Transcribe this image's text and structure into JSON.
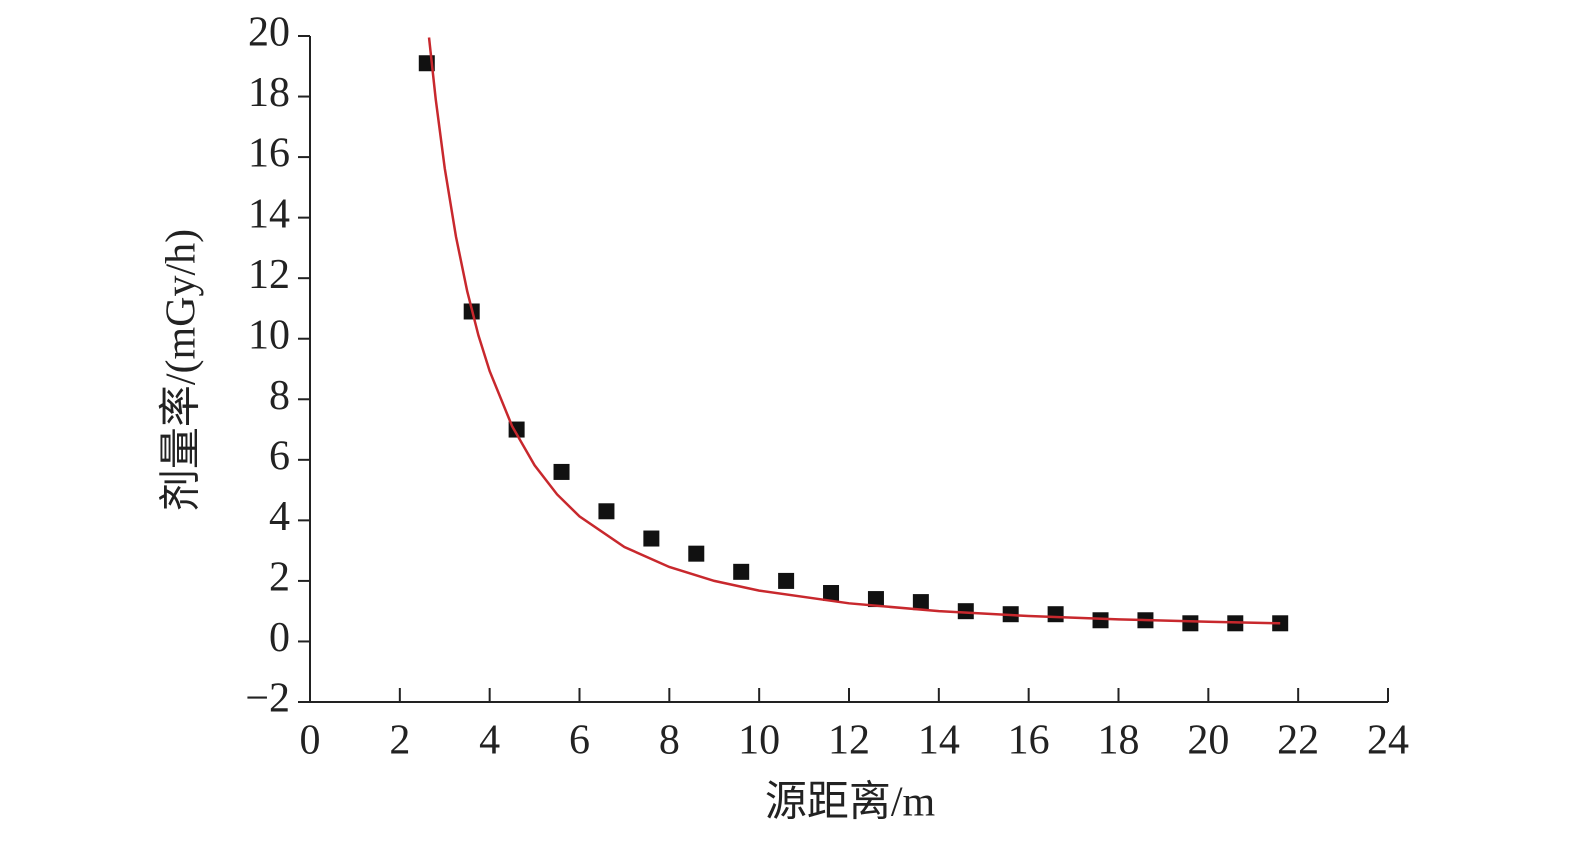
{
  "chart_data": {
    "type": "scatter",
    "xlabel": "源距离/m",
    "ylabel": "剂量率/(mGy/h)",
    "xlim": [
      0,
      24
    ],
    "xticks": [
      0,
      2,
      4,
      6,
      8,
      10,
      12,
      14,
      16,
      18,
      20,
      22,
      24
    ],
    "ylim": [
      -2,
      20
    ],
    "yticks": [
      {
        "value": -2,
        "label": "−2"
      },
      0,
      2,
      4,
      6,
      8,
      10,
      12,
      14,
      16,
      18,
      20
    ],
    "grid": false,
    "series": [
      {
        "type": "scatter",
        "color": "#111111",
        "x": [
          2.6,
          3.6,
          4.6,
          5.6,
          6.6,
          7.6,
          8.6,
          9.6,
          10.6,
          11.6,
          12.6,
          13.6,
          14.6,
          15.6,
          16.6,
          17.6,
          18.6,
          19.6,
          20.6,
          21.6
        ],
        "values": [
          19.1,
          10.9,
          7.0,
          5.6,
          4.3,
          3.4,
          2.9,
          2.3,
          2.0,
          1.6,
          1.4,
          1.3,
          1.0,
          0.9,
          0.9,
          0.7,
          0.7,
          0.6,
          0.6,
          0.6
        ]
      },
      {
        "type": "line",
        "color": "#c8282d",
        "x": [
          2.65,
          2.8,
          3,
          3.25,
          3.5,
          3.75,
          4,
          4.5,
          5,
          5.5,
          6,
          7,
          8,
          9,
          10,
          12,
          14,
          16,
          18,
          20,
          21.6
        ],
        "values": [
          19.95,
          17.9,
          15.63,
          13.37,
          11.57,
          10.11,
          8.93,
          7.11,
          5.82,
          4.86,
          4.13,
          3.12,
          2.46,
          2.0,
          1.68,
          1.26,
          1.0,
          0.84,
          0.73,
          0.65,
          0.6
        ]
      }
    ]
  }
}
